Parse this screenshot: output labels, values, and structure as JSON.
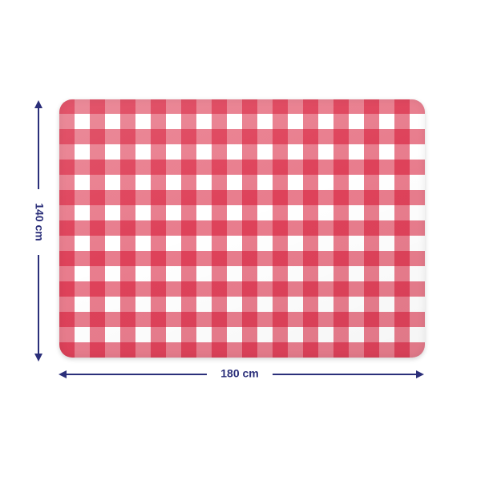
{
  "product": {
    "pattern": "red-white-gingham",
    "colors": {
      "check": "#d61230",
      "base": "#ffffff",
      "dimension": "#2b2f7a"
    }
  },
  "dimensions": {
    "height_label": "140 cm",
    "width_label": "180 cm"
  }
}
